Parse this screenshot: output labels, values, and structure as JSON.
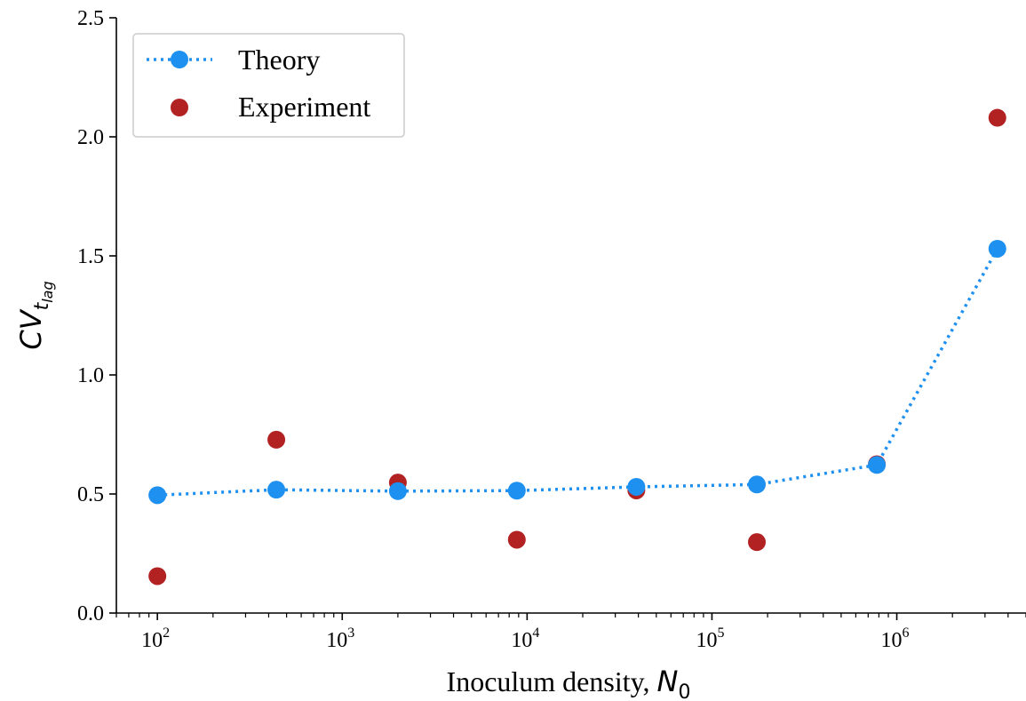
{
  "chart_data": {
    "type": "scatter",
    "x_scale": "log",
    "xlim": [
      60,
      5000000
    ],
    "ylim": [
      0,
      2.5
    ],
    "xlabel": "Inoculum density, ",
    "xlabel_symbol": "N",
    "xlabel_subscript": "0",
    "ylabel_symbol": "CV",
    "ylabel_subscript": "t",
    "ylabel_subsubscript": "lag",
    "x_ticks": [
      {
        "value": 100,
        "base": "10",
        "exp": "2"
      },
      {
        "value": 1000,
        "base": "10",
        "exp": "3"
      },
      {
        "value": 10000,
        "base": "10",
        "exp": "4"
      },
      {
        "value": 100000,
        "base": "10",
        "exp": "5"
      },
      {
        "value": 1000000,
        "base": "10",
        "exp": "6"
      }
    ],
    "y_ticks": [
      {
        "value": 0.0,
        "label": "0.0"
      },
      {
        "value": 0.5,
        "label": "0.5"
      },
      {
        "value": 1.0,
        "label": "1.0"
      },
      {
        "value": 1.5,
        "label": "1.5"
      },
      {
        "value": 2.0,
        "label": "2.0"
      },
      {
        "value": 2.5,
        "label": "2.5"
      }
    ],
    "series": [
      {
        "name": "Theory",
        "style": "dotted-line-with-markers",
        "color": "#1e90f0",
        "points": [
          {
            "x": 100,
            "y": 0.495
          },
          {
            "x": 440,
            "y": 0.518
          },
          {
            "x": 2000,
            "y": 0.512
          },
          {
            "x": 8800,
            "y": 0.514
          },
          {
            "x": 39000,
            "y": 0.53
          },
          {
            "x": 175000,
            "y": 0.54
          },
          {
            "x": 780000,
            "y": 0.622
          },
          {
            "x": 3500000,
            "y": 1.53
          }
        ]
      },
      {
        "name": "Experiment",
        "style": "markers",
        "color": "#b22222",
        "points": [
          {
            "x": 100,
            "y": 0.155
          },
          {
            "x": 440,
            "y": 0.728
          },
          {
            "x": 2000,
            "y": 0.548
          },
          {
            "x": 8800,
            "y": 0.308
          },
          {
            "x": 39000,
            "y": 0.515
          },
          {
            "x": 175000,
            "y": 0.298
          },
          {
            "x": 780000,
            "y": 0.625
          },
          {
            "x": 3500000,
            "y": 2.08
          }
        ]
      }
    ],
    "legend": {
      "position": "top-left",
      "entries": [
        "Theory",
        "Experiment"
      ]
    }
  }
}
